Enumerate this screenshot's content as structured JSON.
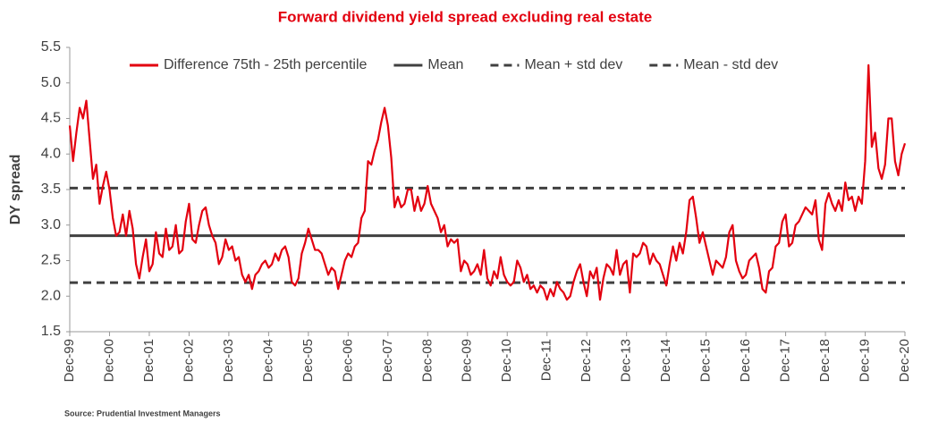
{
  "chart_data": {
    "type": "line",
    "title": "Forward dividend yield spread excluding real estate",
    "y_label": "DY spread",
    "source": "Source: Prudential Investment Managers",
    "categories": [
      "Dec-99",
      null,
      null,
      null,
      null,
      null,
      null,
      null,
      null,
      null,
      null,
      null,
      "Dec-00",
      null,
      null,
      null,
      null,
      null,
      null,
      null,
      null,
      null,
      null,
      null,
      "Dec-01",
      null,
      null,
      null,
      null,
      null,
      null,
      null,
      null,
      null,
      null,
      null,
      "Dec-02",
      null,
      null,
      null,
      null,
      null,
      null,
      null,
      null,
      null,
      null,
      null,
      "Dec-03",
      null,
      null,
      null,
      null,
      null,
      null,
      null,
      null,
      null,
      null,
      null,
      "Dec-04",
      null,
      null,
      null,
      null,
      null,
      null,
      null,
      null,
      null,
      null,
      null,
      "Dec-05",
      null,
      null,
      null,
      null,
      null,
      null,
      null,
      null,
      null,
      null,
      null,
      "Dec-06",
      null,
      null,
      null,
      null,
      null,
      null,
      null,
      null,
      null,
      null,
      null,
      "Dec-07",
      null,
      null,
      null,
      null,
      null,
      null,
      null,
      null,
      null,
      null,
      null,
      "Dec-08",
      null,
      null,
      null,
      null,
      null,
      null,
      null,
      null,
      null,
      null,
      null,
      "Dec-09",
      null,
      null,
      null,
      null,
      null,
      null,
      null,
      null,
      null,
      null,
      null,
      "Dec-10",
      null,
      null,
      null,
      null,
      null,
      null,
      null,
      null,
      null,
      null,
      null,
      "Dec-11",
      null,
      null,
      null,
      null,
      null,
      null,
      null,
      null,
      null,
      null,
      null,
      "Dec-12",
      null,
      null,
      null,
      null,
      null,
      null,
      null,
      null,
      null,
      null,
      null,
      "Dec-13",
      null,
      null,
      null,
      null,
      null,
      null,
      null,
      null,
      null,
      null,
      null,
      "Dec-14",
      null,
      null,
      null,
      null,
      null,
      null,
      null,
      null,
      null,
      null,
      null,
      "Dec-15",
      null,
      null,
      null,
      null,
      null,
      null,
      null,
      null,
      null,
      null,
      null,
      "Dec-16",
      null,
      null,
      null,
      null,
      null,
      null,
      null,
      null,
      null,
      null,
      null,
      "Dec-17",
      null,
      null,
      null,
      null,
      null,
      null,
      null,
      null,
      null,
      null,
      null,
      "Dec-18",
      null,
      null,
      null,
      null,
      null,
      null,
      null,
      null,
      null,
      null,
      null,
      "Dec-19",
      null,
      null,
      null,
      null,
      null,
      null,
      null,
      null,
      null,
      null,
      null,
      "Dec-20"
    ],
    "series": [
      {
        "name": "Difference 75th - 25th percentile",
        "color": "#e3000f",
        "values": [
          4.4,
          3.9,
          4.3,
          4.65,
          4.5,
          4.75,
          4.2,
          3.65,
          3.85,
          3.3,
          3.55,
          3.75,
          3.5,
          3.1,
          2.85,
          2.9,
          3.15,
          2.85,
          3.2,
          2.95,
          2.45,
          2.25,
          2.55,
          2.8,
          2.35,
          2.45,
          2.9,
          2.6,
          2.55,
          2.95,
          2.65,
          2.7,
          3.0,
          2.6,
          2.65,
          3.05,
          3.3,
          2.8,
          2.75,
          3.0,
          3.2,
          3.25,
          3.0,
          2.85,
          2.75,
          2.45,
          2.55,
          2.8,
          2.65,
          2.7,
          2.5,
          2.55,
          2.3,
          2.2,
          2.3,
          2.1,
          2.3,
          2.35,
          2.45,
          2.5,
          2.4,
          2.45,
          2.6,
          2.5,
          2.65,
          2.7,
          2.55,
          2.2,
          2.15,
          2.25,
          2.6,
          2.75,
          2.95,
          2.8,
          2.65,
          2.65,
          2.6,
          2.45,
          2.3,
          2.4,
          2.35,
          2.1,
          2.3,
          2.5,
          2.6,
          2.55,
          2.7,
          2.75,
          3.1,
          3.2,
          3.9,
          3.85,
          4.05,
          4.2,
          4.45,
          4.65,
          4.4,
          3.95,
          3.25,
          3.4,
          3.25,
          3.3,
          3.5,
          3.5,
          3.2,
          3.4,
          3.2,
          3.3,
          3.55,
          3.3,
          3.2,
          3.1,
          2.9,
          3.0,
          2.7,
          2.8,
          2.75,
          2.8,
          2.35,
          2.5,
          2.45,
          2.3,
          2.35,
          2.45,
          2.3,
          2.65,
          2.25,
          2.15,
          2.35,
          2.25,
          2.55,
          2.3,
          2.2,
          2.15,
          2.2,
          2.5,
          2.4,
          2.2,
          2.3,
          2.1,
          2.15,
          2.05,
          2.15,
          2.1,
          1.95,
          2.1,
          2.0,
          2.2,
          2.1,
          2.05,
          1.95,
          2.0,
          2.2,
          2.35,
          2.45,
          2.2,
          2.0,
          2.35,
          2.25,
          2.4,
          1.95,
          2.25,
          2.45,
          2.4,
          2.3,
          2.65,
          2.3,
          2.45,
          2.5,
          2.05,
          2.6,
          2.55,
          2.6,
          2.75,
          2.7,
          2.45,
          2.6,
          2.5,
          2.45,
          2.3,
          2.15,
          2.45,
          2.7,
          2.5,
          2.75,
          2.6,
          2.9,
          3.35,
          3.4,
          3.1,
          2.75,
          2.9,
          2.7,
          2.5,
          2.3,
          2.5,
          2.45,
          2.4,
          2.55,
          2.9,
          3.0,
          2.5,
          2.35,
          2.25,
          2.3,
          2.5,
          2.55,
          2.6,
          2.4,
          2.1,
          2.05,
          2.35,
          2.4,
          2.7,
          2.75,
          3.05,
          3.15,
          2.7,
          2.75,
          3.0,
          3.05,
          3.15,
          3.25,
          3.2,
          3.15,
          3.35,
          2.8,
          2.65,
          3.3,
          3.45,
          3.3,
          3.2,
          3.35,
          3.2,
          3.6,
          3.35,
          3.4,
          3.2,
          3.4,
          3.3,
          3.9,
          5.25,
          4.1,
          4.3,
          3.8,
          3.65,
          3.85,
          4.5,
          4.5,
          3.9,
          3.7,
          4.0,
          4.15
        ]
      }
    ],
    "lines": [
      {
        "name": "Mean",
        "value": 2.85,
        "color": "#404040",
        "dashed": false
      },
      {
        "name": "Mean + std dev",
        "value": 3.52,
        "color": "#404040",
        "dashed": true
      },
      {
        "name": "Mean - std dev",
        "value": 2.19,
        "color": "#404040",
        "dashed": true
      }
    ],
    "ylim": [
      1.5,
      5.5
    ],
    "yticks": [
      {
        "value": 1.5,
        "label": "1.5"
      },
      {
        "value": 2,
        "label": "2.0"
      },
      {
        "value": 2.5,
        "label": "2.5"
      },
      {
        "value": 3,
        "label": "3.0"
      },
      {
        "value": 3.5,
        "label": "3.5"
      },
      {
        "value": 4,
        "label": "4.0"
      },
      {
        "value": 4.5,
        "label": "4.5"
      },
      {
        "value": 5,
        "label": "5.0"
      },
      {
        "value": 5.5,
        "label": "5.5"
      }
    ]
  }
}
